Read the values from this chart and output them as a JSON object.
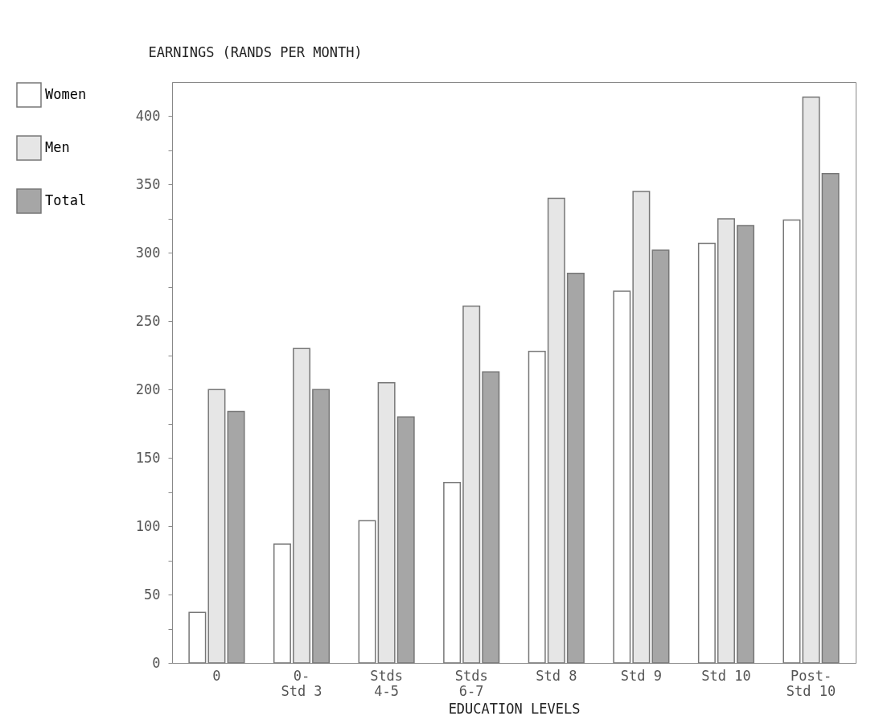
{
  "chart_data": {
    "type": "bar",
    "ylabel": "EARNINGS (RANDS PER MONTH)",
    "xlabel": "EDUCATION LEVELS",
    "categories": [
      "0",
      "0-\nStd 3",
      "Stds\n4-5",
      "Stds\n6-7",
      "Std 8",
      "Std 9",
      "Std 10",
      "Post-\nStd 10"
    ],
    "series": [
      {
        "name": "Women",
        "color": "#ffffff",
        "values": [
          37,
          87,
          104,
          132,
          228,
          272,
          307,
          324
        ]
      },
      {
        "name": "Men",
        "color": "#e6e6e6",
        "values": [
          200,
          230,
          205,
          261,
          340,
          345,
          325,
          414
        ]
      },
      {
        "name": "Total",
        "color": "#a6a6a6",
        "values": [
          184,
          200,
          180,
          213,
          285,
          302,
          320,
          358
        ]
      }
    ],
    "ylim": [
      0,
      425
    ],
    "yticks": [
      0,
      {
        "value": 25,
        "label": null
      },
      50,
      {
        "value": 75,
        "label": null
      },
      100,
      {
        "value": 125,
        "label": null
      },
      150,
      {
        "value": 175,
        "label": null
      },
      200,
      {
        "value": 225,
        "label": null
      },
      250,
      {
        "value": 275,
        "label": null
      },
      300,
      {
        "value": 325,
        "label": null
      },
      350,
      {
        "value": 375,
        "label": null
      },
      400
    ],
    "grid": false,
    "legend": "left"
  }
}
